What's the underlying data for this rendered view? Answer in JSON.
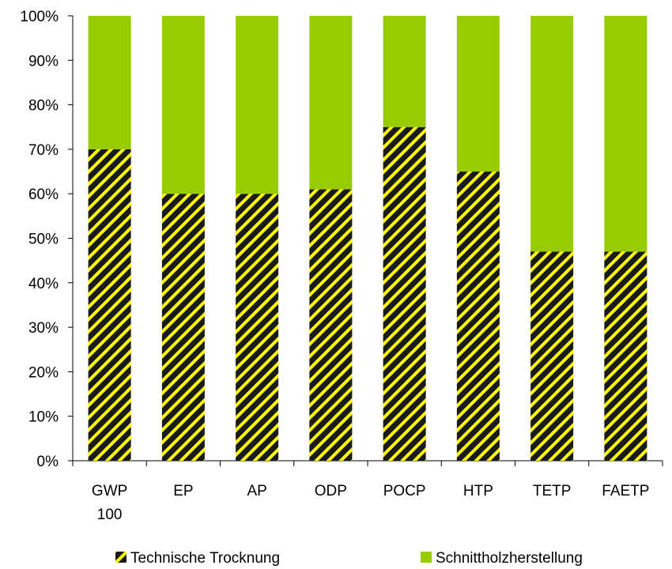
{
  "chart_data": {
    "type": "bar",
    "stacked": true,
    "percent_scale": true,
    "categories": [
      [
        "GWP",
        "100"
      ],
      [
        "EP"
      ],
      [
        "AP"
      ],
      [
        "ODP"
      ],
      [
        "POCP"
      ],
      [
        "HTP"
      ],
      [
        "TETP"
      ],
      [
        "FAETP"
      ]
    ],
    "series": [
      {
        "name": "Technische Trocknung",
        "values": [
          70,
          60,
          60,
          61,
          75,
          65,
          47,
          47
        ],
        "color": "#1a1a1a",
        "pattern": "hatched-yellow",
        "pattern_color": "#ffff00"
      },
      {
        "name": "Schnittholzherstellung",
        "values": [
          30,
          40,
          40,
          39,
          25,
          35,
          53,
          53
        ],
        "color": "#99cc00"
      }
    ],
    "y_ticks": [
      "0%",
      "10%",
      "20%",
      "30%",
      "40%",
      "50%",
      "60%",
      "70%",
      "80%",
      "90%",
      "100%"
    ],
    "ylim": [
      0,
      100
    ],
    "grid": false,
    "legend_position": "bottom"
  }
}
